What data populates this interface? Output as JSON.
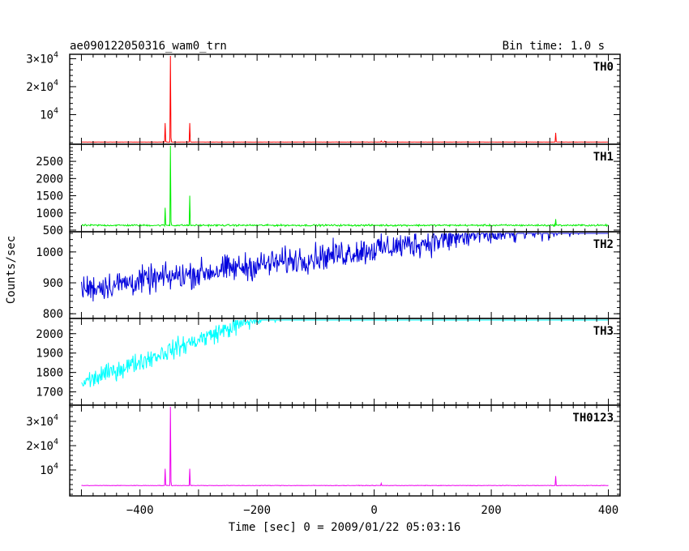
{
  "header": {
    "title": "ae090122050316_wam0_trn",
    "bin_time": "Bin time: 1.0 s"
  },
  "axes": {
    "xlabel": "Time [sec] 0 = 2009/01/22 05:03:16",
    "ylabel": "Counts/sec"
  },
  "chart_data": {
    "type": "line",
    "title": "ae090122050316_wam0_trn",
    "subtitle": "Bin time: 1.0 s",
    "xlabel": "Time [sec] 0 = 2009/01/22 05:03:16",
    "ylabel": "Counts/sec",
    "xlim": [
      -520,
      420
    ],
    "x_ticks": [
      -400,
      -200,
      0,
      200,
      400
    ],
    "x_tick_labels": [
      "−400",
      "−200",
      "0",
      "200",
      "400"
    ],
    "grid": false,
    "panels": [
      {
        "name": "TH0",
        "color": "#ff0000",
        "ylim": [
          0,
          31000
        ],
        "ticks": [
          {
            "v": 10000,
            "label": "10",
            "exp": "4",
            "pre": ""
          },
          {
            "v": 20000,
            "label": "2×10",
            "exp": "4",
            "pre": ""
          },
          {
            "v": 30000,
            "label": "3×10",
            "exp": "4",
            "pre": ""
          }
        ],
        "baseline": 200,
        "trend": 0,
        "noise": 25,
        "spikes": [
          [
            -357,
            7000
          ],
          [
            -348,
            31000
          ],
          [
            -315,
            7000
          ],
          [
            12,
            600
          ],
          [
            18,
            500
          ],
          [
            310,
            3500
          ]
        ]
      },
      {
        "name": "TH1",
        "color": "#00ee00",
        "ylim": [
          500,
          2950
        ],
        "ticks": [
          {
            "v": 500,
            "label": "500"
          },
          {
            "v": 1000,
            "label": "1000"
          },
          {
            "v": 1500,
            "label": "1500"
          },
          {
            "v": 2000,
            "label": "2000"
          },
          {
            "v": 2500,
            "label": "2500"
          }
        ],
        "baseline": 640,
        "trend": 0,
        "noise": 22,
        "spikes": [
          [
            -357,
            1150
          ],
          [
            -348,
            2950
          ],
          [
            -315,
            1500
          ],
          [
            310,
            820
          ]
        ]
      },
      {
        "name": "TH2",
        "color": "#0000dd",
        "ylim": [
          790,
          1060
        ],
        "ticks": [
          {
            "v": 800,
            "label": "800"
          },
          {
            "v": 900,
            "label": "900"
          },
          {
            "v": 1000,
            "label": "1000"
          }
        ],
        "baseline": 880,
        "trend": 9.5e-05,
        "noise": 38,
        "spikes": []
      },
      {
        "name": "TH3",
        "color": "#00ffff",
        "ylim": [
          1640,
          2070
        ],
        "ticks": [
          {
            "v": 1700,
            "label": "1700"
          },
          {
            "v": 1800,
            "label": "1800"
          },
          {
            "v": 1900,
            "label": "1900"
          },
          {
            "v": 2000,
            "label": "2000"
          }
        ],
        "baseline": 1745,
        "trend": 0.00026,
        "noise": 42,
        "spikes": []
      },
      {
        "name": "TH0123",
        "color": "#ee00ee",
        "ylim": [
          0,
          36000
        ],
        "ticks": [
          {
            "v": 10000,
            "label": "10",
            "exp": "4"
          },
          {
            "v": 20000,
            "label": "2×10",
            "exp": "4"
          },
          {
            "v": 30000,
            "label": "3×10",
            "exp": "4"
          }
        ],
        "baseline": 3600,
        "trend": 0,
        "noise": 90,
        "spikes": [
          [
            -357,
            10500
          ],
          [
            -348,
            36000
          ],
          [
            -315,
            10500
          ],
          [
            12,
            4500
          ],
          [
            310,
            7500
          ]
        ]
      }
    ]
  }
}
